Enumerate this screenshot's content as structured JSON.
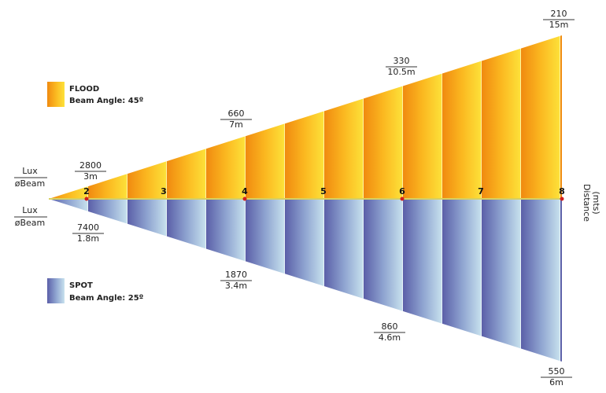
{
  "axis": {
    "lux_label": "Lux",
    "beam_label": "øBeam",
    "distance_ticks": [
      "2",
      "3",
      "4",
      "5",
      "6",
      "7",
      "8"
    ],
    "distance_title": "Distance",
    "distance_unit": "(mts)"
  },
  "flood": {
    "name": "FLOOD",
    "beam_angle": "Beam Angle: 45º",
    "readings": [
      {
        "lux": "2800",
        "beam": "3m"
      },
      {
        "lux": "660",
        "beam": "7m"
      },
      {
        "lux": "330",
        "beam": "10.5m"
      },
      {
        "lux": "210",
        "beam": "15m"
      }
    ]
  },
  "spot": {
    "name": "SPOT",
    "beam_angle": "Beam Angle: 25º",
    "readings": [
      {
        "lux": "7400",
        "beam": "1.8m"
      },
      {
        "lux": "1870",
        "beam": "3.4m"
      },
      {
        "lux": "860",
        "beam": "4.6m"
      },
      {
        "lux": "550",
        "beam": "6m"
      }
    ]
  }
}
